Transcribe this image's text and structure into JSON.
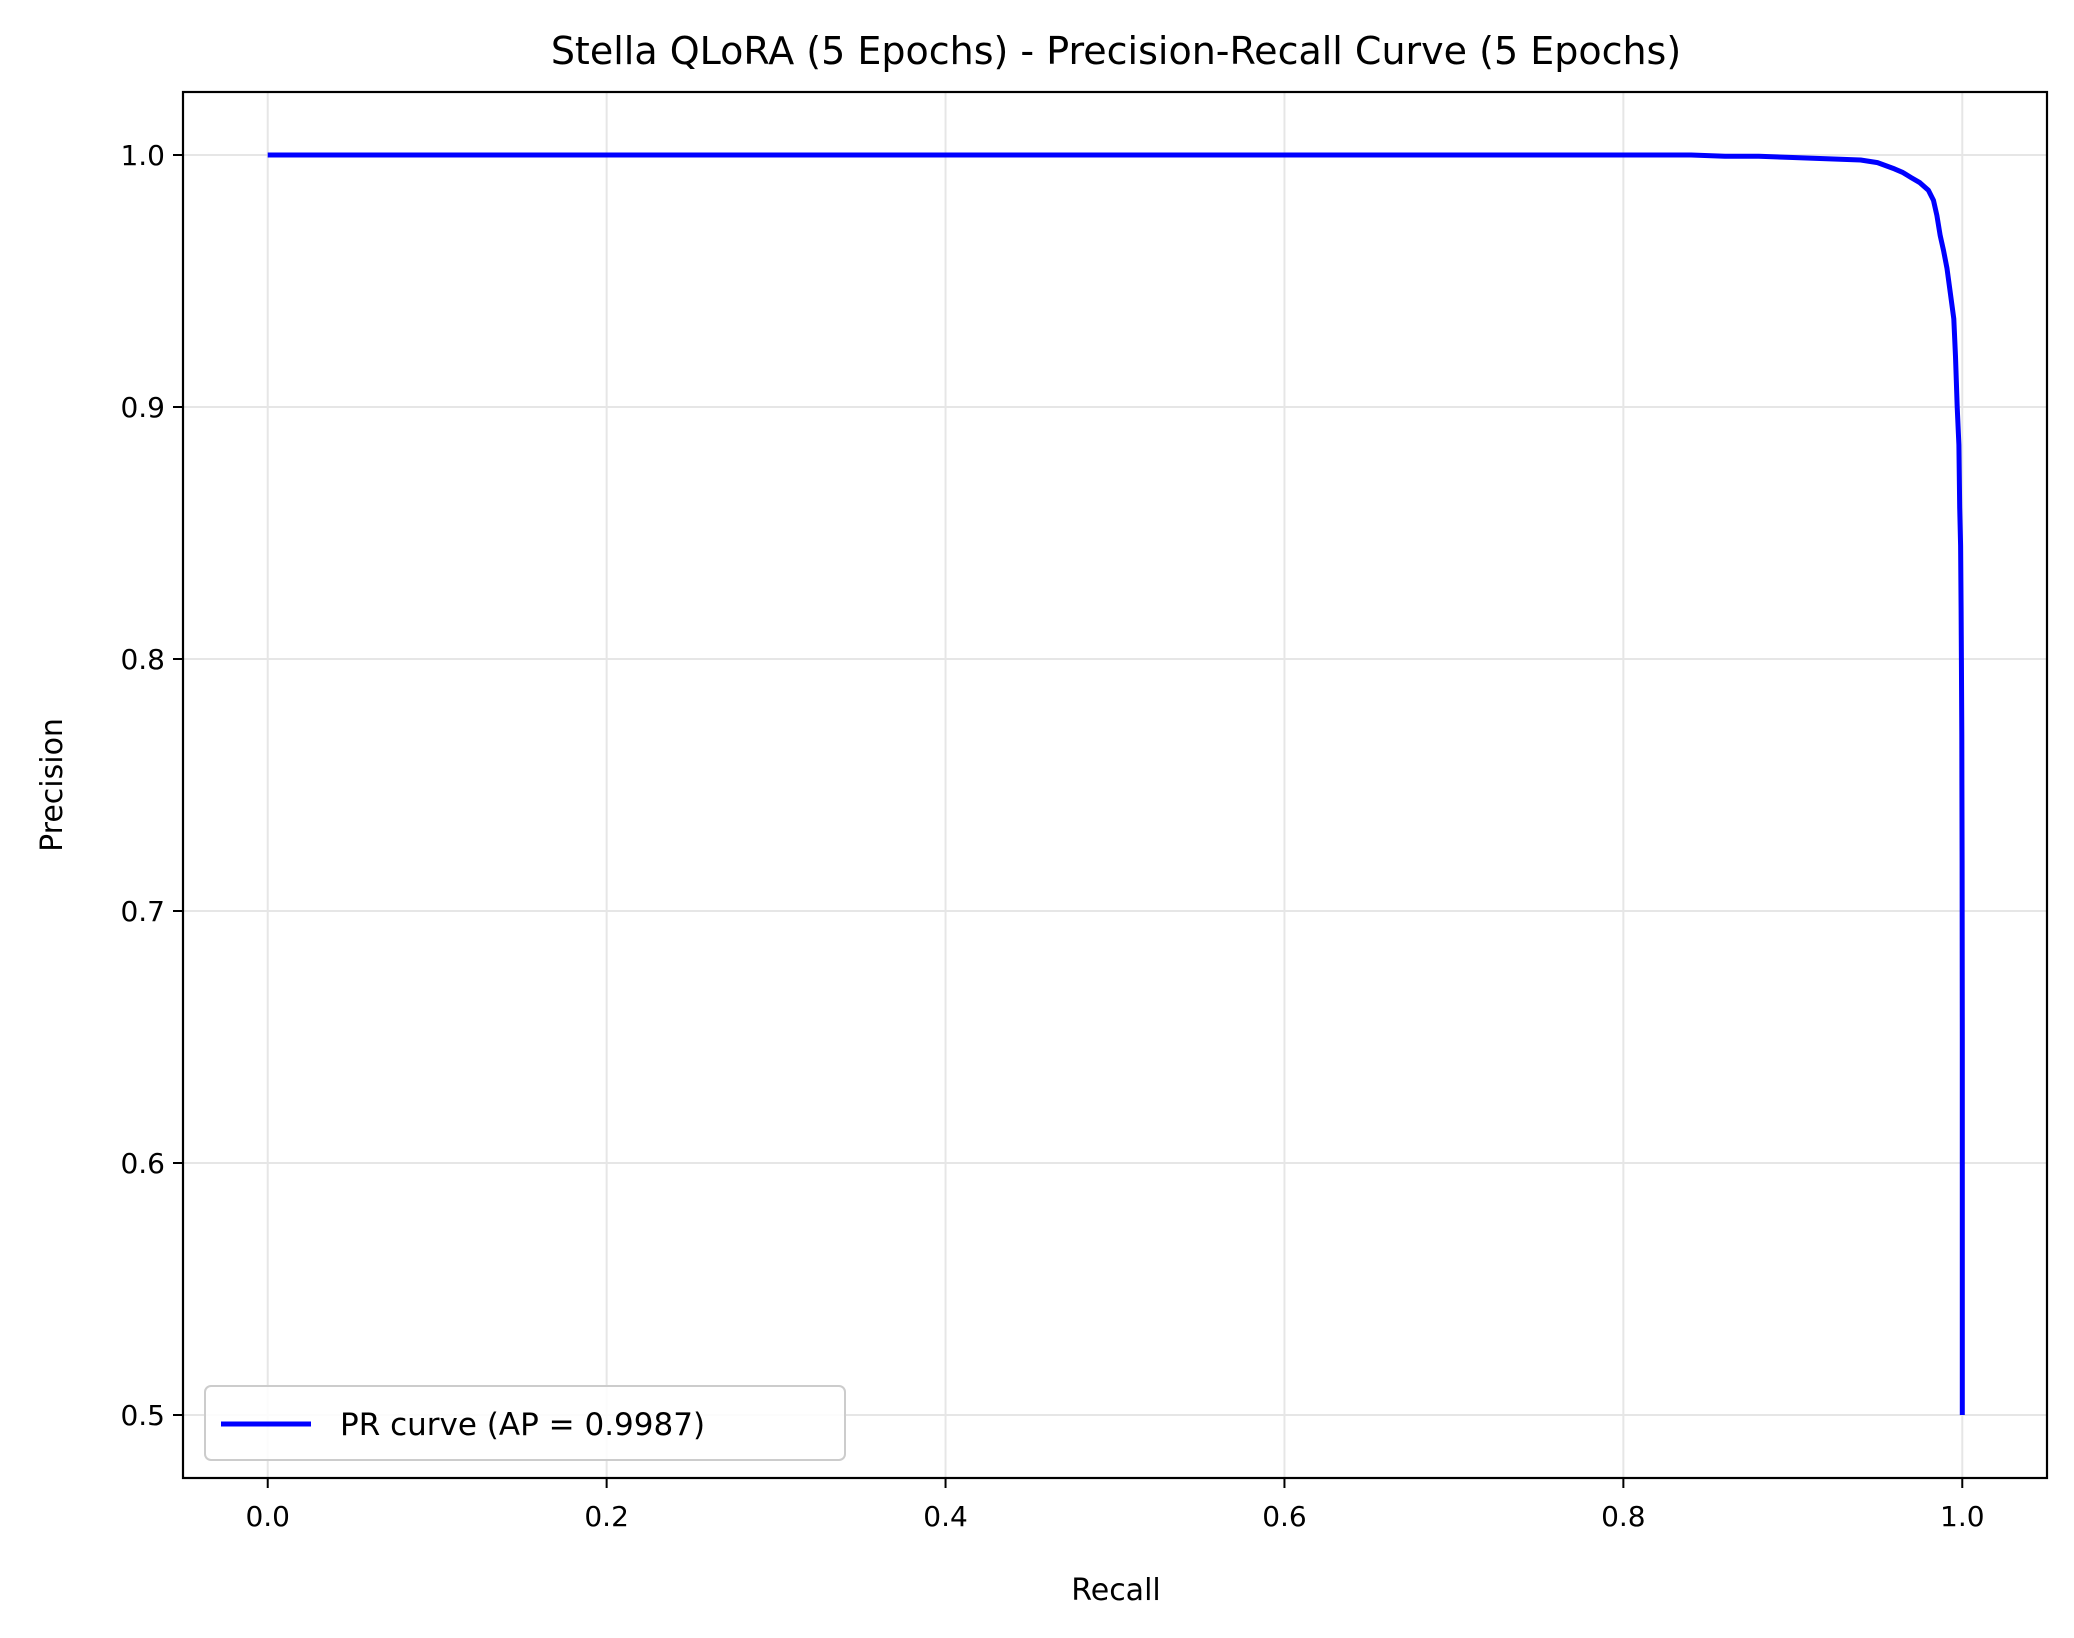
{
  "chart_data": {
    "type": "line",
    "title": "Stella QLoRA (5 Epochs) - Precision-Recall Curve (5 Epochs)",
    "xlabel": "Recall",
    "ylabel": "Precision",
    "xlim": [
      -0.05,
      1.05
    ],
    "ylim": [
      0.475,
      1.025
    ],
    "xticks": [
      0.0,
      0.2,
      0.4,
      0.6,
      0.8,
      1.0
    ],
    "xtick_labels": [
      "0.0",
      "0.2",
      "0.4",
      "0.6",
      "0.8",
      "1.0"
    ],
    "yticks": [
      0.5,
      0.6,
      0.7,
      0.8,
      0.9,
      1.0
    ],
    "ytick_labels": [
      "0.5",
      "0.6",
      "0.7",
      "0.8",
      "0.9",
      "1.0"
    ],
    "grid": true,
    "legend_position": "lower-left",
    "series": [
      {
        "name": "PR curve (AP = 0.9987)",
        "color": "#0000ff",
        "x": [
          0.0,
          0.1,
          0.2,
          0.3,
          0.4,
          0.5,
          0.6,
          0.7,
          0.8,
          0.84,
          0.86,
          0.88,
          0.9,
          0.92,
          0.94,
          0.95,
          0.96,
          0.965,
          0.97,
          0.975,
          0.98,
          0.983,
          0.985,
          0.987,
          0.989,
          0.991,
          0.993,
          0.995,
          0.996,
          0.997,
          0.998,
          0.9985,
          0.999,
          0.9993,
          0.9995,
          0.9997,
          0.9998,
          0.9999,
          1.0,
          1.0
        ],
        "y": [
          1.0,
          1.0,
          1.0,
          1.0,
          1.0,
          1.0,
          1.0,
          1.0,
          1.0,
          1.0,
          0.9995,
          0.9995,
          0.999,
          0.9985,
          0.998,
          0.997,
          0.9945,
          0.993,
          0.991,
          0.989,
          0.986,
          0.982,
          0.976,
          0.968,
          0.962,
          0.955,
          0.945,
          0.935,
          0.92,
          0.9,
          0.885,
          0.86,
          0.845,
          0.82,
          0.8,
          0.77,
          0.75,
          0.72,
          0.65,
          0.5
        ]
      }
    ]
  }
}
